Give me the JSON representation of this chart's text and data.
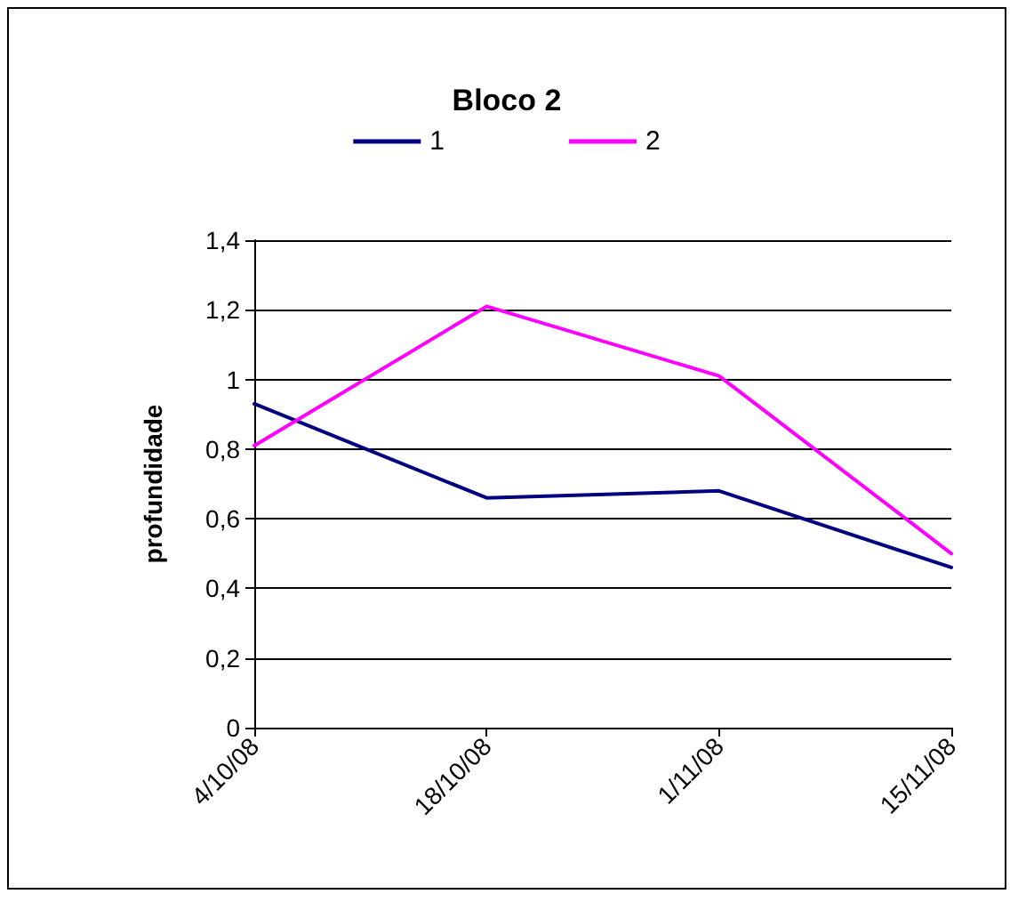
{
  "chart_data": {
    "type": "line",
    "title": "Bloco 2",
    "ylabel": "profundidade",
    "categories": [
      "4/10/08",
      "18/10/08",
      "1/11/08",
      "15/11/08"
    ],
    "series": [
      {
        "name": "1",
        "color": "#000080",
        "values": [
          0.93,
          0.66,
          0.68,
          0.46
        ]
      },
      {
        "name": "2",
        "color": "#ff00ff",
        "values": [
          0.81,
          1.21,
          1.01,
          0.5
        ]
      }
    ],
    "ylim": [
      0,
      1.4
    ],
    "yticks": [
      {
        "value": 0,
        "label": "0"
      },
      {
        "value": 0.2,
        "label": "0,2"
      },
      {
        "value": 0.4,
        "label": "0,4"
      },
      {
        "value": 0.6,
        "label": "0,6"
      },
      {
        "value": 0.8,
        "label": "0,8"
      },
      {
        "value": 1,
        "label": "1"
      },
      {
        "value": 1.2,
        "label": "1,2"
      },
      {
        "value": 1.4,
        "label": "1,4"
      }
    ],
    "grid": "y",
    "legend": "top",
    "marker": "none",
    "line_style": "solid"
  }
}
